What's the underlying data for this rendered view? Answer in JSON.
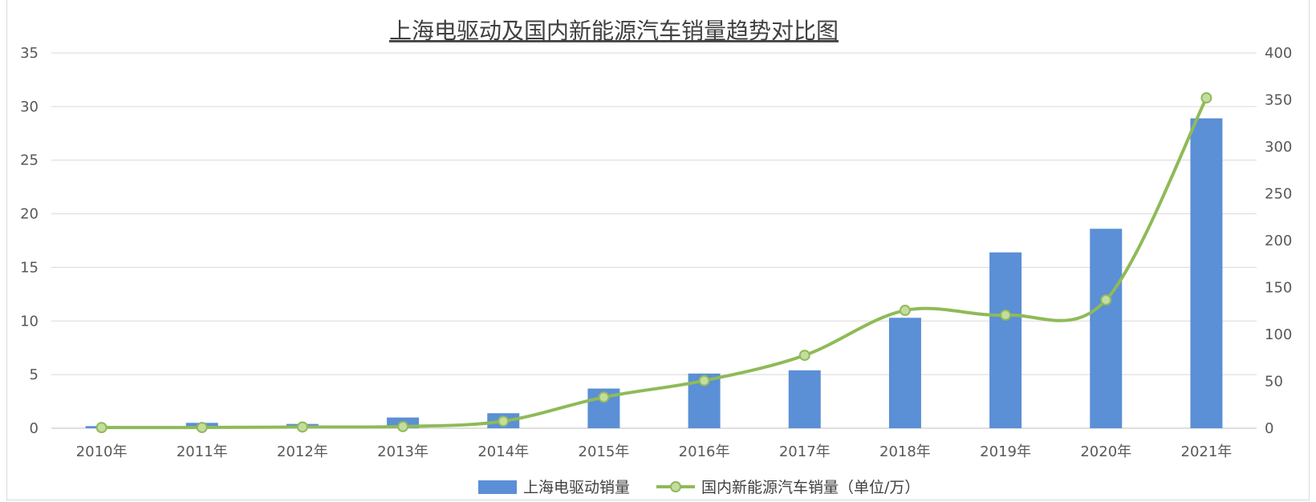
{
  "chart_data": {
    "type": "bar+line",
    "title": "上海电驱动及国内新能源汽车销量趋势对比图",
    "categories": [
      "2010年",
      "2011年",
      "2012年",
      "2013年",
      "2014年",
      "2015年",
      "2016年",
      "2017年",
      "2018年",
      "2019年",
      "2020年",
      "2021年"
    ],
    "series": [
      {
        "name": "上海电驱动销量",
        "type": "bar",
        "axis": "left",
        "color": "#5b8fd6",
        "values": [
          0.2,
          0.5,
          0.4,
          1.0,
          1.4,
          3.7,
          5.1,
          5.4,
          10.3,
          16.4,
          18.6,
          28.9
        ]
      },
      {
        "name": "国内新能源汽车销量（单位/万）",
        "type": "line",
        "axis": "right",
        "color": "#8fba58",
        "values": [
          0.7,
          0.8,
          1.3,
          1.8,
          7.5,
          33.1,
          50.7,
          77.7,
          125.6,
          120.6,
          136.7,
          352.1
        ]
      }
    ],
    "left_axis": {
      "min": 0,
      "max": 35,
      "step": 5,
      "ticks": [
        "0",
        "5",
        "10",
        "15",
        "20",
        "25",
        "30",
        "35"
      ]
    },
    "right_axis": {
      "min": 0,
      "max": 400,
      "step": 50,
      "ticks": [
        "0",
        "50",
        "100",
        "150",
        "200",
        "250",
        "300",
        "350",
        "400"
      ]
    },
    "grid": true,
    "legend_position": "bottom"
  }
}
